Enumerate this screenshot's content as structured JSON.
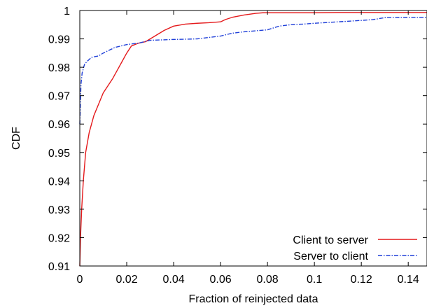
{
  "chart_data": {
    "type": "line",
    "title": "",
    "xlabel": "Fraction of reinjected data",
    "ylabel": "CDF",
    "xlim": [
      0,
      0.148
    ],
    "ylim": [
      0.91,
      1.0
    ],
    "xticks": [
      0,
      0.02,
      0.04,
      0.06,
      0.08,
      0.1,
      0.12,
      0.14
    ],
    "xtick_labels": [
      "0",
      "0.02",
      "0.04",
      "0.06",
      "0.08",
      "0.1",
      "0.12",
      "0.14"
    ],
    "yticks": [
      0.91,
      0.92,
      0.93,
      0.94,
      0.95,
      0.96,
      0.97,
      0.98,
      0.99,
      1.0
    ],
    "ytick_labels": [
      "0.91",
      "0.92",
      "0.93",
      "0.94",
      "0.95",
      "0.96",
      "0.97",
      "0.98",
      "0.99",
      "1"
    ],
    "grid": false,
    "legend_position": "bottom-right",
    "series": [
      {
        "name": "Client to server",
        "color": "#e41a1c",
        "dash": "solid",
        "x": [
          0,
          0.0003,
          0.0008,
          0.0015,
          0.0025,
          0.004,
          0.006,
          0.008,
          0.01,
          0.012,
          0.014,
          0.016,
          0.018,
          0.02,
          0.022,
          0.025,
          0.028,
          0.032,
          0.036,
          0.04,
          0.045,
          0.05,
          0.055,
          0.06,
          0.062,
          0.065,
          0.07,
          0.075,
          0.078,
          0.08,
          0.09,
          0.1,
          0.11,
          0.12,
          0.13,
          0.148
        ],
        "values": [
          0.91,
          0.92,
          0.93,
          0.94,
          0.95,
          0.957,
          0.963,
          0.967,
          0.971,
          0.9735,
          0.976,
          0.979,
          0.982,
          0.985,
          0.9875,
          0.9885,
          0.989,
          0.991,
          0.993,
          0.9945,
          0.9952,
          0.9955,
          0.9957,
          0.996,
          0.9968,
          0.9976,
          0.9984,
          0.999,
          0.9992,
          0.9992,
          0.9992,
          0.9992,
          0.9993,
          0.9993,
          0.9993,
          0.9993
        ]
      },
      {
        "name": "Server to client",
        "color": "#1f3fd8",
        "dash": "dashdot",
        "x": [
          0,
          0.0005,
          0.001,
          0.002,
          0.003,
          0.005,
          0.008,
          0.01,
          0.015,
          0.02,
          0.025,
          0.03,
          0.04,
          0.05,
          0.06,
          0.065,
          0.07,
          0.08,
          0.085,
          0.09,
          0.095,
          0.1,
          0.11,
          0.12,
          0.125,
          0.128,
          0.13,
          0.14,
          0.148
        ],
        "values": [
          0.96,
          0.974,
          0.978,
          0.981,
          0.982,
          0.9835,
          0.984,
          0.985,
          0.987,
          0.988,
          0.9885,
          0.9895,
          0.9898,
          0.99,
          0.991,
          0.992,
          0.9925,
          0.9932,
          0.9945,
          0.995,
          0.9952,
          0.9955,
          0.996,
          0.9965,
          0.9968,
          0.9972,
          0.9975,
          0.9976,
          0.9976
        ]
      }
    ]
  }
}
